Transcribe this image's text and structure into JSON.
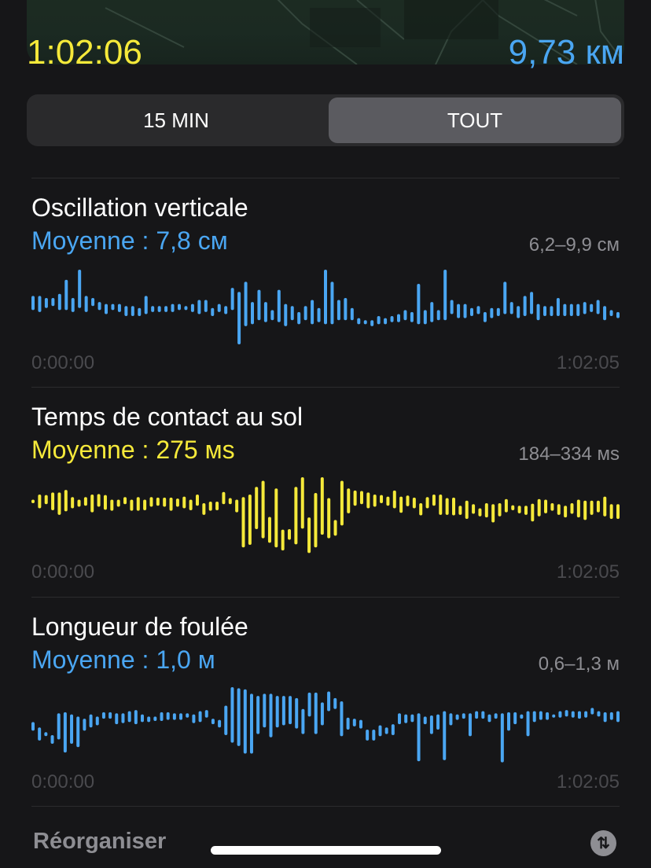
{
  "summary": {
    "duration": "1:02:06",
    "distance": "9,73 км"
  },
  "segmented": {
    "options": [
      "15 MIN",
      "TOUT"
    ],
    "selected": "TOUT"
  },
  "colors": {
    "blue": "#4aa6f2",
    "yellow": "#f5e93a",
    "background": "#161618"
  },
  "sections": [
    {
      "title": "Oscillation verticale",
      "average": "Moyenne : 7,8 см",
      "range": "6,2–9,9 см",
      "start": "0:00:00",
      "end": "1:02:05"
    },
    {
      "title": "Temps de contact au sol",
      "average": "Moyenne : 275 мs",
      "range": "184–334 мs",
      "start": "0:00:00",
      "end": "1:02:05"
    },
    {
      "title": "Longueur de foulée",
      "average": "Moyenne : 1,0 м",
      "range": "0,6–1,3 м",
      "start": "0:00:00",
      "end": "1:02:05"
    }
  ],
  "footer": {
    "reorder": "Réorganiser",
    "sort_icon": "arrow-up-down-icon"
  },
  "chart_data": [
    {
      "type": "bar",
      "kind": "range-bars",
      "unit": "cm",
      "ylim": [
        6.2,
        9.9
      ],
      "color": "#4aa6f2",
      "x_start": "0:00:00",
      "x_end": "1:02:05",
      "bars": [
        [
          8.6,
          7.9
        ],
        [
          8.6,
          7.8
        ],
        [
          8.5,
          8.0
        ],
        [
          8.5,
          8.1
        ],
        [
          8.7,
          7.9
        ],
        [
          9.4,
          7.9
        ],
        [
          8.5,
          7.8
        ],
        [
          9.9,
          8.0
        ],
        [
          8.6,
          7.8
        ],
        [
          8.5,
          8.1
        ],
        [
          8.3,
          7.9
        ],
        [
          8.2,
          7.7
        ],
        [
          8.2,
          7.9
        ],
        [
          8.2,
          7.8
        ],
        [
          8.1,
          7.6
        ],
        [
          8.1,
          7.6
        ],
        [
          8.0,
          7.6
        ],
        [
          8.6,
          7.7
        ],
        [
          8.1,
          7.8
        ],
        [
          8.1,
          7.8
        ],
        [
          8.1,
          7.8
        ],
        [
          8.2,
          7.8
        ],
        [
          8.2,
          7.9
        ],
        [
          8.1,
          7.9
        ],
        [
          8.2,
          7.8
        ],
        [
          8.4,
          7.7
        ],
        [
          8.4,
          7.8
        ],
        [
          8.0,
          7.6
        ],
        [
          8.2,
          7.8
        ],
        [
          8.1,
          7.7
        ],
        [
          9.0,
          7.9
        ],
        [
          8.8,
          6.2
        ],
        [
          9.3,
          7.1
        ],
        [
          8.3,
          7.2
        ],
        [
          8.9,
          7.4
        ],
        [
          8.3,
          7.3
        ],
        [
          7.9,
          7.4
        ],
        [
          8.9,
          7.3
        ],
        [
          8.2,
          7.1
        ],
        [
          8.1,
          7.4
        ],
        [
          7.8,
          7.2
        ],
        [
          8.1,
          7.4
        ],
        [
          8.4,
          7.2
        ],
        [
          8.0,
          7.3
        ],
        [
          9.9,
          7.2
        ],
        [
          9.3,
          7.2
        ],
        [
          8.4,
          7.4
        ],
        [
          8.5,
          7.4
        ],
        [
          8.0,
          7.4
        ],
        [
          7.5,
          7.2
        ],
        [
          7.4,
          7.2
        ],
        [
          7.4,
          7.1
        ],
        [
          7.6,
          7.2
        ],
        [
          7.5,
          7.2
        ],
        [
          7.6,
          7.3
        ],
        [
          7.7,
          7.3
        ],
        [
          7.9,
          7.4
        ],
        [
          7.8,
          7.3
        ],
        [
          9.2,
          7.2
        ],
        [
          7.9,
          7.2
        ],
        [
          8.3,
          7.3
        ],
        [
          7.9,
          7.4
        ],
        [
          9.9,
          7.4
        ],
        [
          8.4,
          7.7
        ],
        [
          8.2,
          7.5
        ],
        [
          8.2,
          7.5
        ],
        [
          8.0,
          7.6
        ],
        [
          8.1,
          7.7
        ],
        [
          7.8,
          7.3
        ],
        [
          8.0,
          7.5
        ],
        [
          8.0,
          7.6
        ],
        [
          9.3,
          7.7
        ],
        [
          8.3,
          7.7
        ],
        [
          8.1,
          7.5
        ],
        [
          8.6,
          7.6
        ],
        [
          8.8,
          7.7
        ],
        [
          8.2,
          7.4
        ],
        [
          8.1,
          7.6
        ],
        [
          8.1,
          7.6
        ],
        [
          8.5,
          7.6
        ],
        [
          8.2,
          7.6
        ],
        [
          8.2,
          7.6
        ],
        [
          8.2,
          7.6
        ],
        [
          8.3,
          7.7
        ],
        [
          8.2,
          7.8
        ],
        [
          8.4,
          7.7
        ],
        [
          8.1,
          7.4
        ],
        [
          7.9,
          7.6
        ],
        [
          7.8,
          7.5
        ]
      ]
    },
    {
      "type": "bar",
      "kind": "range-bars",
      "unit": "ms",
      "ylim": [
        184,
        334
      ],
      "color": "#f5e93a",
      "x_start": "0:00:00",
      "x_end": "1:02:05",
      "bars": [
        [
          290,
          283
        ],
        [
          300,
          273
        ],
        [
          299,
          281
        ],
        [
          304,
          269
        ],
        [
          304,
          260
        ],
        [
          309,
          267
        ],
        [
          295,
          273
        ],
        [
          290,
          276
        ],
        [
          295,
          278
        ],
        [
          300,
          265
        ],
        [
          301,
          276
        ],
        [
          299,
          270
        ],
        [
          290,
          268
        ],
        [
          290,
          276
        ],
        [
          295,
          281
        ],
        [
          290,
          268
        ],
        [
          295,
          268
        ],
        [
          290,
          269
        ],
        [
          295,
          276
        ],
        [
          294,
          278
        ],
        [
          294,
          276
        ],
        [
          294,
          268
        ],
        [
          292,
          276
        ],
        [
          296,
          273
        ],
        [
          290,
          269
        ],
        [
          300,
          278
        ],
        [
          283,
          260
        ],
        [
          286,
          268
        ],
        [
          286,
          269
        ],
        [
          305,
          281
        ],
        [
          293,
          281
        ],
        [
          290,
          265
        ],
        [
          295,
          196
        ],
        [
          300,
          201
        ],
        [
          315,
          232
        ],
        [
          327,
          214
        ],
        [
          256,
          205
        ],
        [
          312,
          196
        ],
        [
          231,
          190
        ],
        [
          232,
          211
        ],
        [
          315,
          202
        ],
        [
          334,
          233
        ],
        [
          255,
          185
        ],
        [
          303,
          196
        ],
        [
          334,
          221
        ],
        [
          293,
          214
        ],
        [
          250,
          219
        ],
        [
          327,
          239
        ],
        [
          312,
          263
        ],
        [
          308,
          278
        ],
        [
          307,
          281
        ],
        [
          304,
          273
        ],
        [
          300,
          276
        ],
        [
          299,
          283
        ],
        [
          296,
          278
        ],
        [
          308,
          273
        ],
        [
          296,
          264
        ],
        [
          298,
          277
        ],
        [
          294,
          273
        ],
        [
          283,
          259
        ],
        [
          295,
          273
        ],
        [
          300,
          278
        ],
        [
          300,
          260
        ],
        [
          293,
          260
        ],
        [
          294,
          259
        ],
        [
          278,
          260
        ],
        [
          288,
          252
        ],
        [
          281,
          262
        ],
        [
          273,
          257
        ],
        [
          283,
          255
        ],
        [
          281,
          245
        ],
        [
          283,
          257
        ],
        [
          291,
          265
        ],
        [
          279,
          269
        ],
        [
          278,
          263
        ],
        [
          278,
          260
        ],
        [
          282,
          247
        ],
        [
          291,
          257
        ],
        [
          290,
          263
        ],
        [
          283,
          268
        ],
        [
          281,
          260
        ],
        [
          278,
          255
        ],
        [
          283,
          262
        ],
        [
          290,
          255
        ],
        [
          288,
          250
        ],
        [
          288,
          260
        ],
        [
          288,
          265
        ],
        [
          296,
          257
        ],
        [
          281,
          252
        ],
        [
          281,
          252
        ]
      ]
    },
    {
      "type": "bar",
      "kind": "range-bars",
      "unit": "m",
      "ylim": [
        0.6,
        1.3
      ],
      "color": "#4aa6f2",
      "x_start": "0:00:00",
      "x_end": "1:02:05",
      "bars": [
        [
          0.98,
          0.9
        ],
        [
          0.93,
          0.81
        ],
        [
          0.88,
          0.86
        ],
        [
          0.86,
          0.78
        ],
        [
          1.06,
          0.82
        ],
        [
          1.07,
          0.7
        ],
        [
          1.05,
          0.78
        ],
        [
          1.03,
          0.75
        ],
        [
          1.01,
          0.9
        ],
        [
          1.05,
          0.93
        ],
        [
          1.03,
          0.95
        ],
        [
          1.07,
          1.01
        ],
        [
          1.07,
          1.01
        ],
        [
          1.06,
          0.96
        ],
        [
          1.06,
          0.97
        ],
        [
          1.08,
          0.98
        ],
        [
          1.09,
          0.96
        ],
        [
          1.05,
          0.98
        ],
        [
          1.03,
          0.98
        ],
        [
          1.03,
          0.99
        ],
        [
          1.07,
          0.99
        ],
        [
          1.07,
          1.0
        ],
        [
          1.06,
          1.0
        ],
        [
          1.06,
          1.0
        ],
        [
          1.06,
          1.02
        ],
        [
          1.05,
          0.97
        ],
        [
          1.08,
          0.98
        ],
        [
          1.09,
          1.02
        ],
        [
          1.01,
          0.96
        ],
        [
          1.0,
          0.93
        ],
        [
          1.13,
          0.86
        ],
        [
          1.3,
          0.79
        ],
        [
          1.29,
          0.76
        ],
        [
          1.28,
          0.69
        ],
        [
          1.24,
          0.69
        ],
        [
          1.22,
          0.87
        ],
        [
          1.24,
          0.93
        ],
        [
          1.24,
          0.84
        ],
        [
          1.22,
          0.93
        ],
        [
          1.22,
          0.95
        ],
        [
          1.22,
          0.96
        ],
        [
          1.2,
          0.92
        ],
        [
          1.1,
          0.87
        ],
        [
          1.25,
          1.03
        ],
        [
          1.25,
          0.87
        ],
        [
          1.16,
          0.95
        ],
        [
          1.26,
          1.08
        ],
        [
          1.2,
          1.1
        ],
        [
          1.17,
          0.85
        ],
        [
          1.02,
          0.91
        ],
        [
          1.01,
          0.94
        ],
        [
          1.0,
          0.92
        ],
        [
          0.91,
          0.81
        ],
        [
          0.91,
          0.81
        ],
        [
          0.95,
          0.85
        ],
        [
          0.93,
          0.87
        ],
        [
          0.96,
          0.86
        ],
        [
          1.06,
          0.96
        ],
        [
          1.05,
          0.97
        ],
        [
          1.05,
          0.98
        ],
        [
          1.06,
          0.62
        ],
        [
          1.03,
          0.96
        ],
        [
          1.04,
          0.87
        ],
        [
          1.05,
          0.91
        ],
        [
          1.08,
          0.63
        ],
        [
          1.06,
          0.95
        ],
        [
          1.05,
          1.0
        ],
        [
          1.06,
          1.01
        ],
        [
          1.06,
          0.85
        ],
        [
          1.08,
          1.01
        ],
        [
          1.08,
          1.01
        ],
        [
          1.05,
          0.98
        ],
        [
          1.06,
          1.01
        ],
        [
          1.06,
          0.61
        ],
        [
          1.07,
          0.9
        ],
        [
          1.07,
          0.96
        ],
        [
          1.05,
          1.01
        ],
        [
          1.08,
          0.85
        ],
        [
          1.08,
          0.98
        ],
        [
          1.08,
          1.0
        ],
        [
          1.07,
          1.0
        ],
        [
          1.05,
          1.02
        ],
        [
          1.08,
          1.02
        ],
        [
          1.09,
          1.03
        ],
        [
          1.08,
          1.02
        ],
        [
          1.08,
          1.01
        ],
        [
          1.08,
          1.02
        ],
        [
          1.11,
          1.05
        ],
        [
          1.08,
          1.03
        ],
        [
          1.07,
          0.98
        ],
        [
          1.07,
          1.0
        ],
        [
          1.08,
          0.98
        ]
      ]
    }
  ]
}
